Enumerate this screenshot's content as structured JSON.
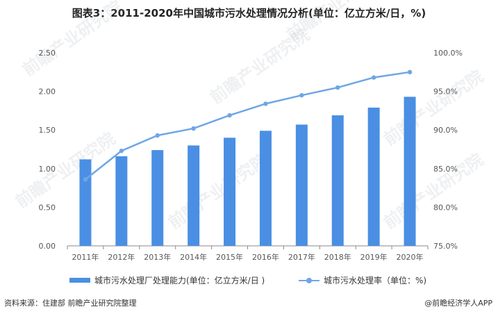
{
  "title": "图表3：2011-2020年中国城市污水处理情况分析(单位：亿立方米/日，%)",
  "watermark_text": "前瞻产业研究院",
  "legend": {
    "bar_label": "城市污水处理厂处理能力(单位：亿立方米/日 )",
    "line_label": "城市污水处理率（单位：%)"
  },
  "footer": {
    "source": "资料来源：住建部 前瞻产业研究院整理",
    "brand": "@前瞻经济学人APP"
  },
  "colors": {
    "bar": "#4a8fe3",
    "line": "#6ea6e6",
    "axis": "#888888"
  },
  "chart_data": {
    "type": "bar",
    "categories": [
      "2011年",
      "2012年",
      "2013年",
      "2014年",
      "2015年",
      "2016年",
      "2017年",
      "2018年",
      "2019年",
      "2020年"
    ],
    "series": [
      {
        "name": "城市污水处理厂处理能力(单位：亿立方米/日 )",
        "type": "bar",
        "axis": "left",
        "values": [
          1.12,
          1.16,
          1.24,
          1.3,
          1.4,
          1.49,
          1.57,
          1.69,
          1.79,
          1.93
        ]
      },
      {
        "name": "城市污水处理率（单位：%)",
        "type": "line",
        "axis": "right",
        "values": [
          83.6,
          87.3,
          89.3,
          90.2,
          91.9,
          93.4,
          94.5,
          95.5,
          96.8,
          97.5
        ]
      }
    ],
    "y_left": {
      "ylim": [
        0,
        2.5
      ],
      "ticks": [
        "0.00",
        "0.50",
        "1.00",
        "1.50",
        "2.00",
        "2.50"
      ]
    },
    "y_right": {
      "ylim": [
        75,
        100
      ],
      "ticks": [
        "75.0%",
        "80.0%",
        "85.0%",
        "90.0%",
        "95.0%",
        "100.0%"
      ]
    },
    "grid": false,
    "legend_position": "bottom"
  }
}
